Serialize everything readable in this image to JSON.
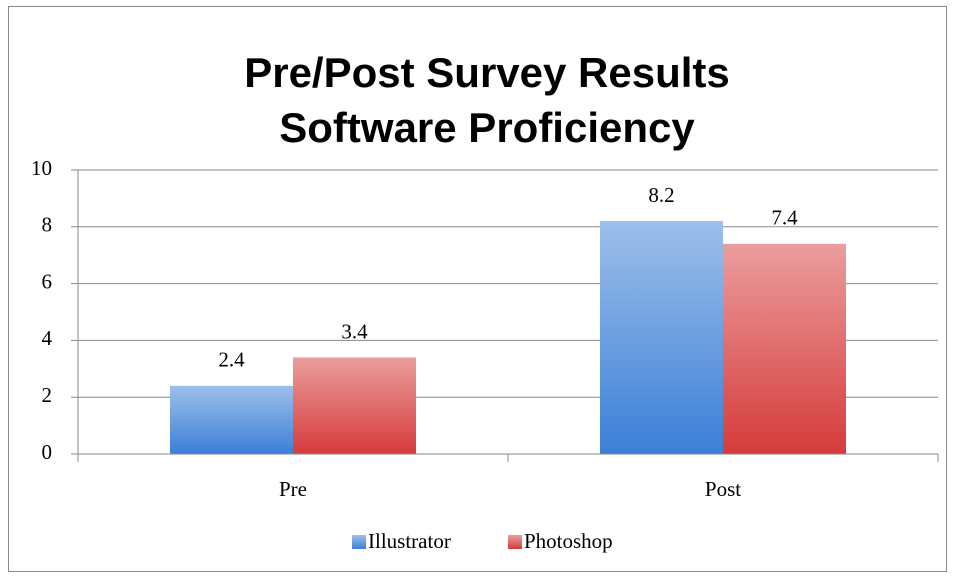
{
  "chart_data": {
    "type": "bar",
    "title": [
      "Pre/Post Survey Results",
      "Software Proficiency"
    ],
    "categories": [
      "Pre",
      "Post"
    ],
    "series": [
      {
        "name": "Illustrator",
        "color": "#3b7fd6",
        "values": [
          2.4,
          8.2
        ]
      },
      {
        "name": "Photoshop",
        "color": "#d63b3b",
        "values": [
          3.4,
          7.4
        ]
      }
    ],
    "ylim": [
      0,
      10
    ],
    "yticks": [
      0,
      2,
      4,
      6,
      8,
      10
    ],
    "grid": true,
    "legend": "bottom"
  }
}
